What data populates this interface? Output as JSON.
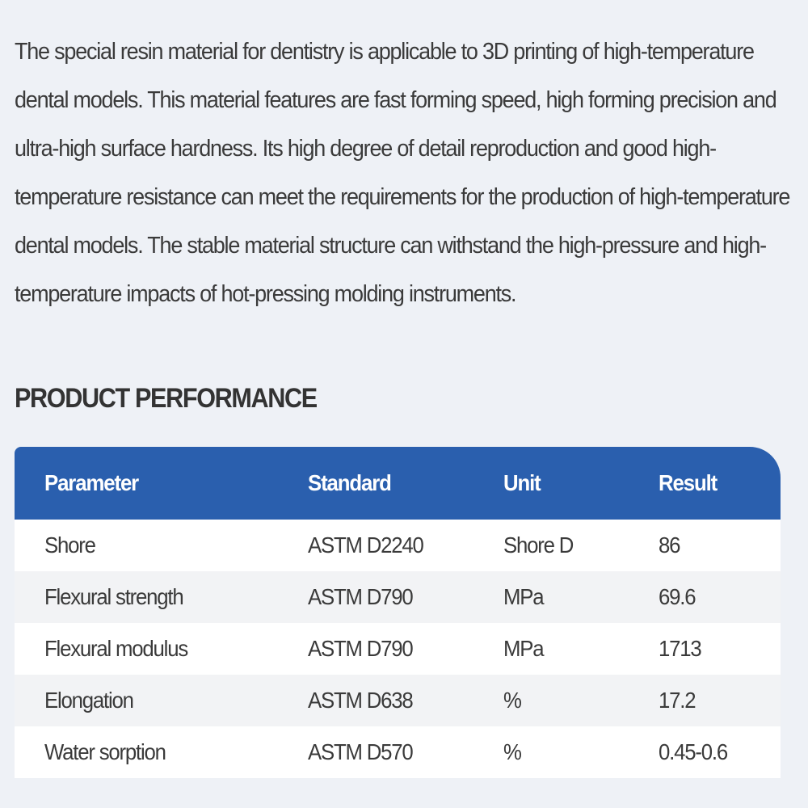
{
  "description_lines": [
    "The special resin material for dentistry is applicable to 3D printing of high-temperature",
    "dental models. This material features are fast forming speed, high forming precision and",
    "ultra-high surface hardness. Its high degree of detail reproduction and good high-",
    "temperature resistance can meet the requirements for the production of high-temperature",
    "dental models. The stable material structure can withstand the high-pressure and high-",
    "temperature impacts of hot-pressing molding instruments."
  ],
  "section_title": "PRODUCT PERFORMANCE",
  "table": {
    "header_color": "#2a5fae",
    "columns": [
      "Parameter",
      "Standard",
      "Unit",
      "Result"
    ],
    "rows": [
      [
        "Shore",
        "ASTM D2240",
        "Shore D",
        "86"
      ],
      [
        "Flexural strength",
        "ASTM D790",
        "MPa",
        "69.6"
      ],
      [
        "Flexural modulus",
        "ASTM D790",
        "MPa",
        "1713"
      ],
      [
        "Elongation",
        "ASTM D638",
        "%",
        "17.2"
      ],
      [
        "Water sorption",
        "ASTM D570",
        "%",
        "0.45-0.6"
      ]
    ]
  }
}
